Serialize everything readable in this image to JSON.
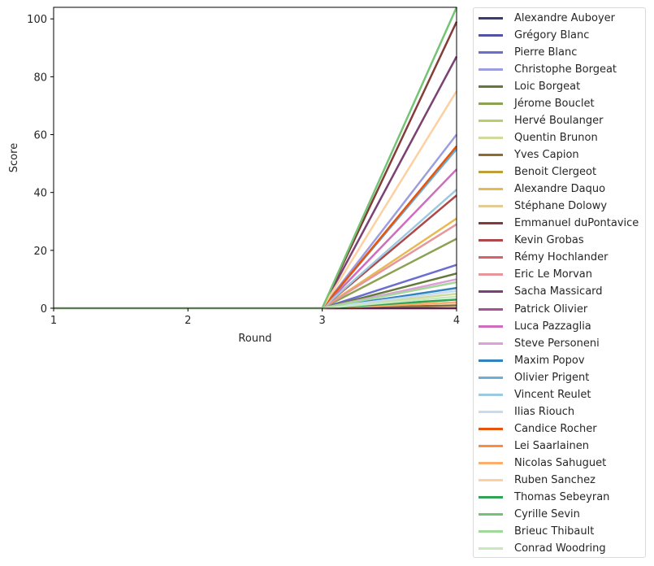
{
  "chart_data": {
    "type": "line",
    "title": "",
    "xlabel": "Round",
    "ylabel": "Score",
    "x": [
      1,
      2,
      3,
      4
    ],
    "xticks": [
      "1",
      "2",
      "3",
      "4"
    ],
    "yticks": [
      "0",
      "20",
      "40",
      "60",
      "80",
      "100"
    ],
    "xlim": [
      1,
      4
    ],
    "ylim": [
      0,
      104
    ],
    "grid": false,
    "legend_position": "outside right",
    "series": [
      {
        "name": "Alexandre Auboyer",
        "color": "#393b79",
        "values": [
          0,
          0,
          0,
          0
        ]
      },
      {
        "name": "Grégory Blanc",
        "color": "#5254a3",
        "values": [
          0,
          0,
          0,
          0
        ]
      },
      {
        "name": "Pierre Blanc",
        "color": "#6b6ecf",
        "values": [
          0,
          0,
          0,
          15
        ]
      },
      {
        "name": "Christophe Borgeat",
        "color": "#9c9ede",
        "values": [
          0,
          0,
          0,
          60
        ]
      },
      {
        "name": "Loic Borgeat",
        "color": "#637939",
        "values": [
          0,
          0,
          0,
          12
        ]
      },
      {
        "name": "Jérome Bouclet",
        "color": "#8ca252",
        "values": [
          0,
          0,
          0,
          24
        ]
      },
      {
        "name": "Hervé Boulanger",
        "color": "#b5cf6b",
        "values": [
          0,
          0,
          0,
          0
        ]
      },
      {
        "name": "Quentin Brunon",
        "color": "#cedb9c",
        "values": [
          0,
          0,
          0,
          5
        ]
      },
      {
        "name": "Yves Capion",
        "color": "#8c6d31",
        "values": [
          0,
          0,
          0,
          1
        ]
      },
      {
        "name": "Benoit Clergeot",
        "color": "#bd9e39",
        "values": [
          0,
          0,
          0,
          0
        ]
      },
      {
        "name": "Alexandre Daquo",
        "color": "#e7ba52",
        "values": [
          0,
          0,
          0,
          31
        ]
      },
      {
        "name": "Stéphane Dolowy",
        "color": "#e7cb94",
        "values": [
          0,
          0,
          0,
          0
        ]
      },
      {
        "name": "Emmanuel duPontavice",
        "color": "#843c39",
        "values": [
          0,
          0,
          0,
          99
        ]
      },
      {
        "name": "Kevin Grobas",
        "color": "#ad494a",
        "values": [
          0,
          0,
          0,
          39
        ]
      },
      {
        "name": "Rémy Hochlander",
        "color": "#d6616b",
        "values": [
          0,
          0,
          0,
          0
        ]
      },
      {
        "name": "Eric Le Morvan",
        "color": "#e7969c",
        "values": [
          0,
          0,
          0,
          29
        ]
      },
      {
        "name": "Sacha Massicard",
        "color": "#7b4173",
        "values": [
          0,
          0,
          0,
          87
        ]
      },
      {
        "name": "Patrick Olivier",
        "color": "#a55194",
        "values": [
          0,
          0,
          0,
          0
        ]
      },
      {
        "name": "Luca Pazzaglia",
        "color": "#ce6dbd",
        "values": [
          0,
          0,
          0,
          48
        ]
      },
      {
        "name": "Steve Personeni",
        "color": "#de9ed6",
        "values": [
          0,
          0,
          0,
          10
        ]
      },
      {
        "name": "Maxim Popov",
        "color": "#3182bd",
        "values": [
          0,
          0,
          0,
          7
        ]
      },
      {
        "name": "Olivier Prigent",
        "color": "#6baed6",
        "values": [
          0,
          0,
          0,
          55
        ]
      },
      {
        "name": "Vincent Reulet",
        "color": "#9ecae1",
        "values": [
          0,
          0,
          0,
          41
        ]
      },
      {
        "name": "Ilias Riouch",
        "color": "#c6dbef",
        "values": [
          0,
          0,
          0,
          6
        ]
      },
      {
        "name": "Candice Rocher",
        "color": "#e6550d",
        "values": [
          0,
          0,
          0,
          56
        ]
      },
      {
        "name": "Lei Saarlainen",
        "color": "#fd8d3c",
        "values": [
          0,
          0,
          0,
          2
        ]
      },
      {
        "name": "Nicolas Sahuguet",
        "color": "#fdae6b",
        "values": [
          0,
          0,
          0,
          2
        ]
      },
      {
        "name": "Ruben Sanchez",
        "color": "#fdd0a2",
        "values": [
          0,
          0,
          0,
          75
        ]
      },
      {
        "name": "Thomas Sebeyran",
        "color": "#31a354",
        "values": [
          0,
          0,
          0,
          3
        ]
      },
      {
        "name": "Cyrille Sevin",
        "color": "#74c476",
        "values": [
          0,
          0,
          0,
          104
        ]
      },
      {
        "name": "Brieuc Thibault",
        "color": "#a1d99b",
        "values": [
          0,
          0,
          0,
          9
        ]
      },
      {
        "name": "Conrad Woodring",
        "color": "#c7e9c0",
        "values": [
          0,
          0,
          0,
          4
        ]
      }
    ]
  }
}
